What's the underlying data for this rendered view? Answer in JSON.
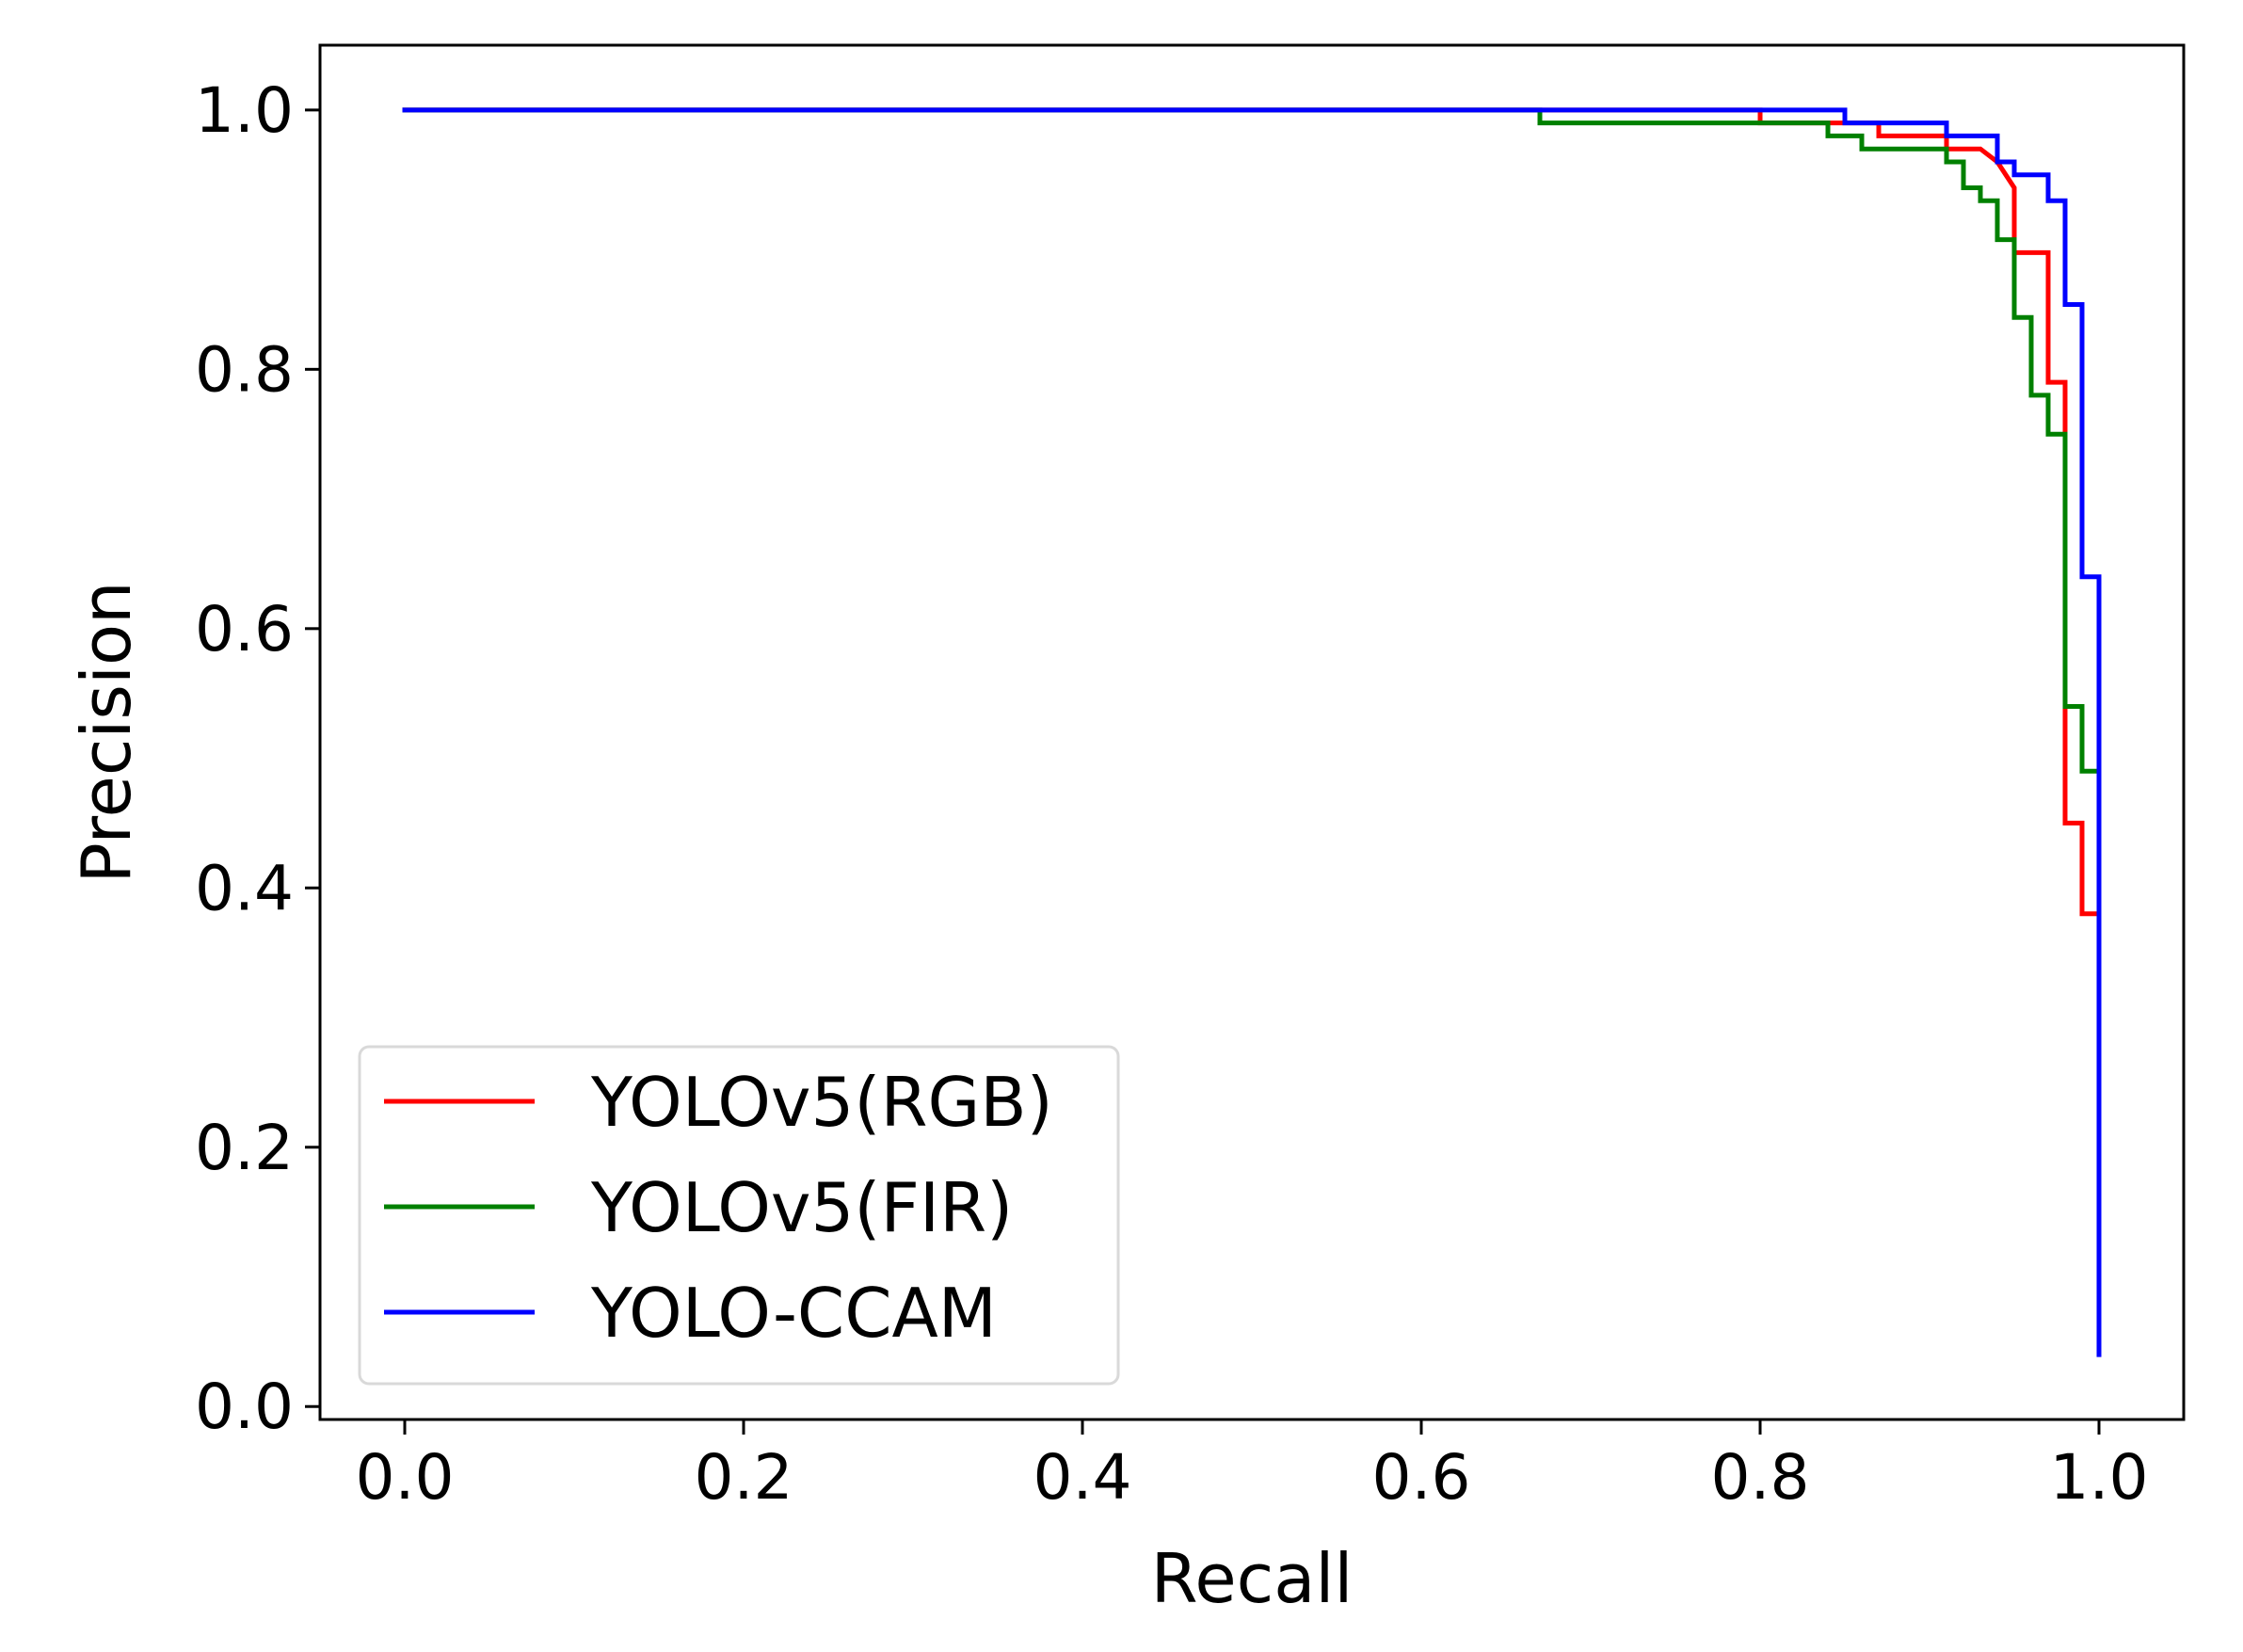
{
  "chart_data": {
    "type": "line",
    "xlabel": "Recall",
    "ylabel": "Precision",
    "xlim": [
      -0.05,
      1.05
    ],
    "ylim": [
      -0.01,
      1.05
    ],
    "x_ticks": [
      "0.0",
      "0.2",
      "0.4",
      "0.6",
      "0.8",
      "1.0"
    ],
    "y_ticks": [
      "0.0",
      "0.2",
      "0.4",
      "0.6",
      "0.8",
      "1.0"
    ],
    "grid": false,
    "legend_position": "lower-left",
    "series": [
      {
        "name": "YOLOv5(RGB)",
        "color": "#ff0000",
        "step": true,
        "points": [
          [
            0.0,
            1.0
          ],
          [
            0.8,
            1.0
          ],
          [
            0.8,
            0.99
          ],
          [
            0.87,
            0.99
          ],
          [
            0.87,
            0.98
          ],
          [
            0.91,
            0.98
          ],
          [
            0.91,
            0.97
          ],
          [
            0.93,
            0.97
          ],
          [
            0.94,
            0.96
          ],
          [
            0.95,
            0.94
          ],
          [
            0.95,
            0.89
          ],
          [
            0.97,
            0.89
          ],
          [
            0.97,
            0.79
          ],
          [
            0.98,
            0.79
          ],
          [
            0.98,
            0.45
          ],
          [
            0.99,
            0.45
          ],
          [
            0.99,
            0.38
          ],
          [
            1.0,
            0.38
          ]
        ]
      },
      {
        "name": "YOLOv5(FIR)",
        "color": "#008000",
        "step": true,
        "points": [
          [
            0.0,
            1.0
          ],
          [
            0.67,
            1.0
          ],
          [
            0.67,
            0.99
          ],
          [
            0.84,
            0.99
          ],
          [
            0.84,
            0.98
          ],
          [
            0.86,
            0.98
          ],
          [
            0.86,
            0.97
          ],
          [
            0.91,
            0.97
          ],
          [
            0.91,
            0.96
          ],
          [
            0.92,
            0.96
          ],
          [
            0.92,
            0.94
          ],
          [
            0.93,
            0.94
          ],
          [
            0.93,
            0.93
          ],
          [
            0.94,
            0.93
          ],
          [
            0.94,
            0.9
          ],
          [
            0.95,
            0.9
          ],
          [
            0.95,
            0.84
          ],
          [
            0.96,
            0.84
          ],
          [
            0.96,
            0.78
          ],
          [
            0.97,
            0.78
          ],
          [
            0.97,
            0.75
          ],
          [
            0.98,
            0.75
          ],
          [
            0.98,
            0.54
          ],
          [
            0.99,
            0.54
          ],
          [
            0.99,
            0.49
          ],
          [
            1.0,
            0.49
          ]
        ]
      },
      {
        "name": "YOLO-CCAM",
        "color": "#0000ff",
        "step": true,
        "points": [
          [
            0.0,
            1.0
          ],
          [
            0.85,
            1.0
          ],
          [
            0.85,
            0.99
          ],
          [
            0.91,
            0.99
          ],
          [
            0.91,
            0.98
          ],
          [
            0.94,
            0.98
          ],
          [
            0.94,
            0.96
          ],
          [
            0.95,
            0.96
          ],
          [
            0.95,
            0.95
          ],
          [
            0.97,
            0.95
          ],
          [
            0.97,
            0.93
          ],
          [
            0.98,
            0.93
          ],
          [
            0.98,
            0.85
          ],
          [
            0.99,
            0.85
          ],
          [
            0.99,
            0.64
          ],
          [
            1.0,
            0.64
          ],
          [
            1.0,
            0.04
          ]
        ]
      }
    ]
  }
}
